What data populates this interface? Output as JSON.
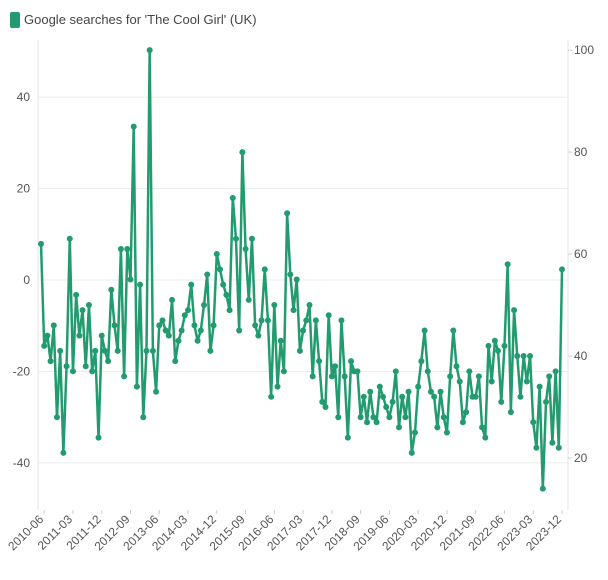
{
  "chart_data": {
    "type": "line",
    "series": [
      {
        "name": "Google searches for 'The Cool Girl' (UK)",
        "color": "#229b6e",
        "axis": "y2",
        "values": [
          62,
          42,
          44,
          39,
          46,
          28,
          41,
          21,
          38,
          63,
          37,
          52,
          44,
          49,
          38,
          50,
          37,
          41,
          24,
          44,
          41,
          39,
          53,
          46,
          41,
          61,
          36,
          61,
          55,
          85,
          34,
          54,
          28,
          41,
          100,
          41,
          33,
          46,
          47,
          45,
          44,
          51,
          39,
          43,
          45,
          48,
          49,
          54,
          46,
          43,
          45,
          50,
          56,
          41,
          46,
          60,
          57,
          54,
          52,
          49,
          71,
          63,
          45,
          80,
          61,
          51,
          63,
          46,
          44,
          47,
          57,
          47,
          32,
          50,
          34,
          43,
          37,
          68,
          56,
          49,
          55,
          41,
          45,
          47,
          50,
          36,
          47,
          39,
          31,
          30,
          48,
          36,
          38,
          28,
          47,
          36,
          24,
          39,
          37,
          37,
          28,
          32,
          27,
          33,
          28,
          27,
          34,
          32,
          30,
          28,
          31,
          37,
          26,
          32,
          28,
          33,
          21,
          25,
          34,
          39,
          45,
          37,
          33,
          32,
          26,
          33,
          28,
          25,
          36,
          45,
          38,
          35,
          27,
          29,
          37,
          32,
          32,
          36,
          26,
          24,
          42,
          35,
          43,
          41,
          31,
          42,
          58,
          29,
          49,
          40,
          32,
          40,
          35,
          40,
          27,
          22,
          34,
          14,
          31,
          36,
          23,
          37,
          22,
          57
        ]
      }
    ],
    "x": [
      "2010-05",
      "2010-06",
      "2010-07",
      "2010-08",
      "2010-09",
      "2010-10",
      "2010-11",
      "2010-12",
      "2011-01",
      "2011-02",
      "2011-03",
      "2011-04",
      "2011-05",
      "2011-06",
      "2011-07",
      "2011-08",
      "2011-09",
      "2011-10",
      "2011-11",
      "2011-12",
      "2012-01",
      "2012-02",
      "2012-03",
      "2012-04",
      "2012-05",
      "2012-06",
      "2012-07",
      "2012-08",
      "2012-09",
      "2012-10",
      "2012-11",
      "2012-12",
      "2013-01",
      "2013-02",
      "2013-03",
      "2013-04",
      "2013-05",
      "2013-06",
      "2013-07",
      "2013-08",
      "2013-09",
      "2013-10",
      "2013-11",
      "2013-12",
      "2014-01",
      "2014-02",
      "2014-03",
      "2014-04",
      "2014-05",
      "2014-06",
      "2014-07",
      "2014-08",
      "2014-09",
      "2014-10",
      "2014-11",
      "2014-12",
      "2015-01",
      "2015-02",
      "2015-03",
      "2015-04",
      "2015-05",
      "2015-06",
      "2015-07",
      "2015-08",
      "2015-09",
      "2015-10",
      "2015-11",
      "2015-12",
      "2016-01",
      "2016-02",
      "2016-03",
      "2016-04",
      "2016-05",
      "2016-06",
      "2016-07",
      "2016-08",
      "2016-09",
      "2016-10",
      "2016-11",
      "2016-12",
      "2017-01",
      "2017-02",
      "2017-03",
      "2017-04",
      "2017-05",
      "2017-06",
      "2017-07",
      "2017-08",
      "2017-09",
      "2017-10",
      "2017-11",
      "2017-12",
      "2018-01",
      "2018-02",
      "2018-03",
      "2018-04",
      "2018-05",
      "2018-06",
      "2018-07",
      "2018-08",
      "2018-09",
      "2018-10",
      "2018-11",
      "2018-12",
      "2019-01",
      "2019-02",
      "2019-03",
      "2019-04",
      "2019-05",
      "2019-06",
      "2019-07",
      "2019-08",
      "2019-09",
      "2019-10",
      "2019-11",
      "2019-12",
      "2020-01",
      "2020-02",
      "2020-03",
      "2020-04",
      "2020-05",
      "2020-06",
      "2020-07",
      "2020-08",
      "2020-09",
      "2020-10",
      "2020-11",
      "2020-12",
      "2021-01",
      "2021-02",
      "2021-03",
      "2021-04",
      "2021-05",
      "2021-06",
      "2021-07",
      "2021-08",
      "2021-09",
      "2021-10",
      "2021-11",
      "2021-12",
      "2022-01",
      "2022-02",
      "2022-03",
      "2022-04",
      "2022-05",
      "2022-06",
      "2022-07",
      "2022-08",
      "2022-09",
      "2022-10",
      "2022-11",
      "2022-12",
      "2023-01",
      "2023-02",
      "2023-03",
      "2023-04",
      "2023-05",
      "2023-06",
      "2023-07",
      "2023-08",
      "2023-09",
      "2023-10",
      "2023-11",
      "2023-12"
    ],
    "xticks": [
      "2010-06",
      "2011-03",
      "2011-12",
      "2012-09",
      "2013-06",
      "2014-03",
      "2014-12",
      "2015-09",
      "2016-06",
      "2017-03",
      "2017-12",
      "2018-09",
      "2019-06",
      "2020-03",
      "2020-12",
      "2021-09",
      "2022-06",
      "2023-03",
      "2023-12"
    ],
    "ylim": [
      -50.3,
      51.4
    ],
    "yticks": [
      -40,
      -20,
      0,
      20,
      40
    ],
    "y2lim": [
      9.8,
      101
    ],
    "y2ticks": [
      20,
      40,
      60,
      80,
      100
    ],
    "grid": true,
    "legend": "top-left"
  }
}
